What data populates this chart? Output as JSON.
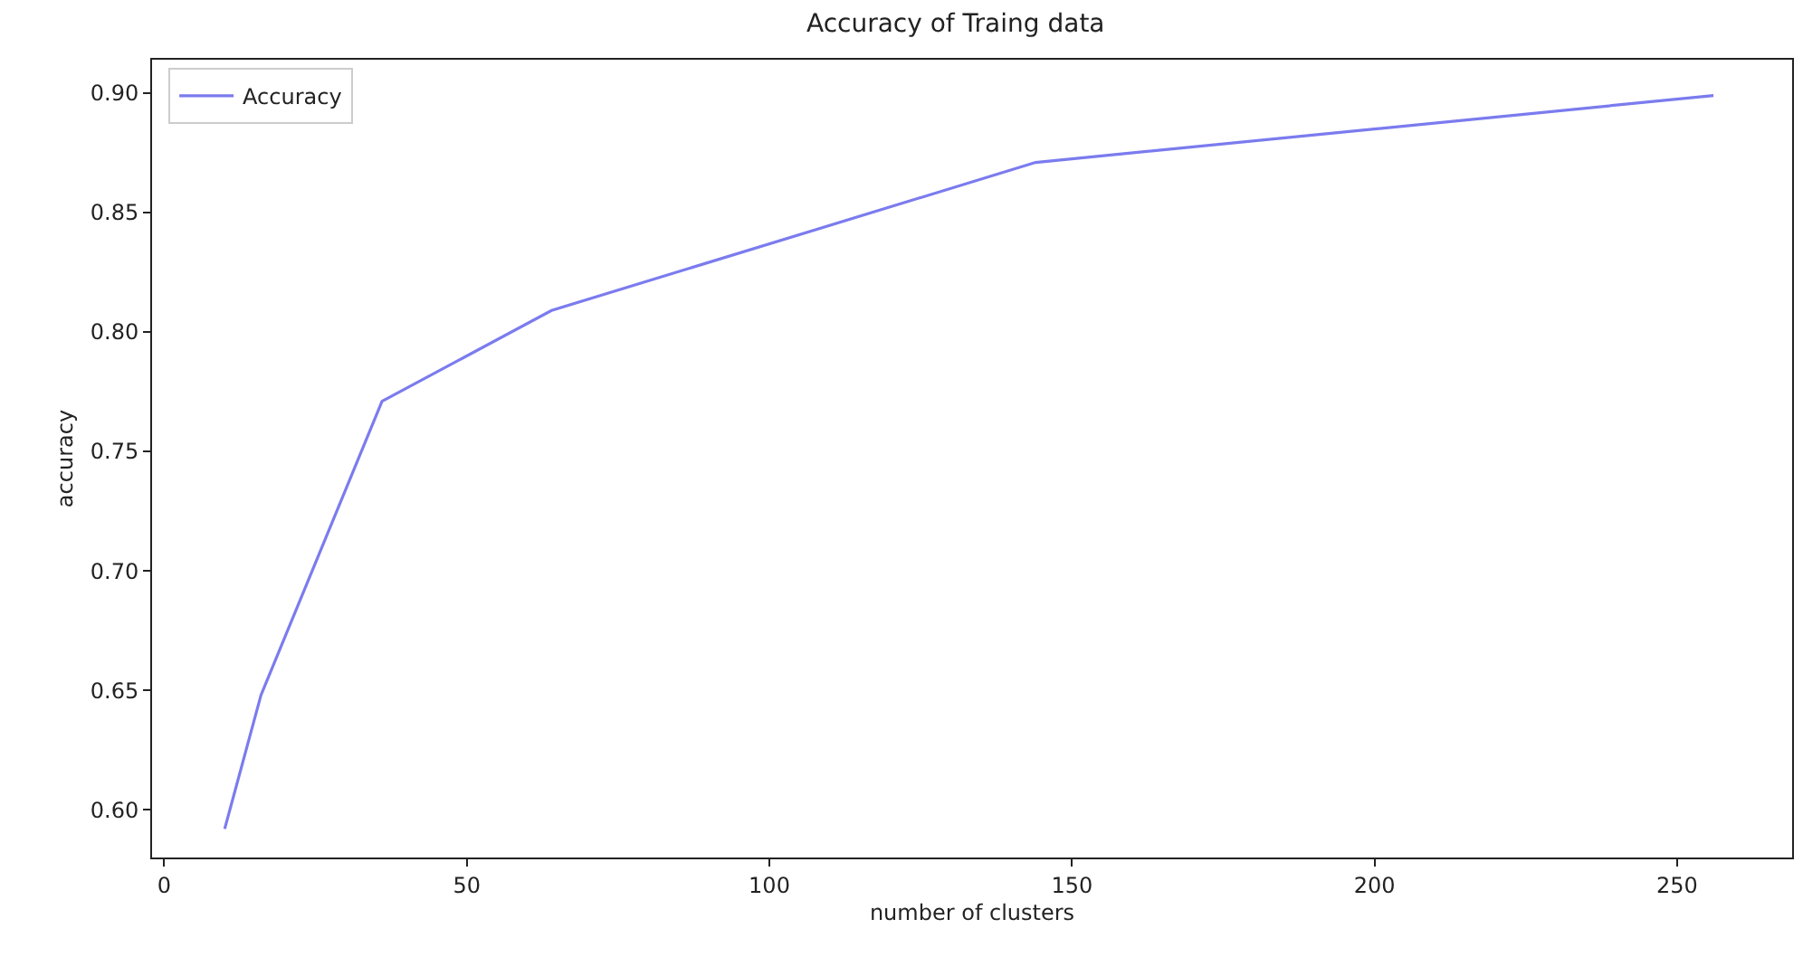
{
  "chart_data": {
    "type": "line",
    "title": "Accuracy of Traing data",
    "xlabel": "number of clusters",
    "ylabel": "accuracy",
    "x": [
      10,
      16,
      36,
      64,
      144,
      256
    ],
    "series": [
      {
        "name": "Accuracy",
        "color": "#7b7bef",
        "values": [
          0.592,
          0.648,
          0.771,
          0.809,
          0.871,
          0.899
        ]
      }
    ],
    "xlim": [
      -2,
      269
    ],
    "xticks": [
      0,
      50,
      100,
      150,
      200,
      250
    ],
    "ylim": [
      0.58,
      0.914
    ],
    "yticks": [
      {
        "value": 0.6,
        "label": "0.60"
      },
      {
        "value": 0.65,
        "label": "0.65"
      },
      {
        "value": 0.7,
        "label": "0.70"
      },
      {
        "value": 0.75,
        "label": "0.75"
      },
      {
        "value": 0.8,
        "label": "0.80"
      },
      {
        "value": 0.85,
        "label": "0.85"
      },
      {
        "value": 0.9,
        "label": "0.90"
      }
    ],
    "grid": false,
    "legend": "top left",
    "marker": "none",
    "line_style": "solid"
  }
}
